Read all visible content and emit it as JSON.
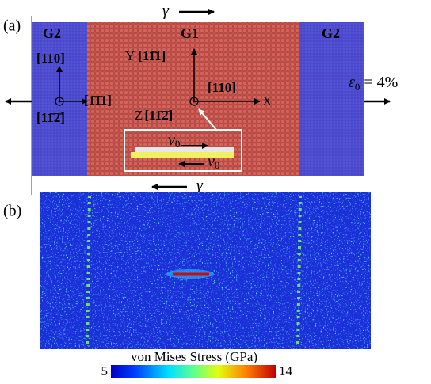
{
  "panel_a": {
    "label": "(a)",
    "shear_top": "γ",
    "shear_bottom": "γ",
    "grains": [
      "G2",
      "G1",
      "G2"
    ],
    "left_axes": {
      "up": "[110]",
      "right": "[1̄1̄1]",
      "out": "[11̄2̄]"
    },
    "center_axes": {
      "y_name": "Y",
      "y_dir": "[11̄1]",
      "x_dir": "[110]",
      "x_name": "X",
      "z_name": "Z",
      "z_dir": "[11̄2̄]"
    },
    "strain": {
      "symbol": "ε",
      "subscript": "0",
      "rest": " = 4%"
    },
    "inset": {
      "velocity_top": {
        "symbol": "v",
        "subscript": "0"
      },
      "velocity_bottom": {
        "symbol": "v",
        "subscript": "0"
      }
    }
  },
  "panel_b": {
    "label": "(b)",
    "colorbar": {
      "title": "von Mises Stress (GPa)",
      "min_label": "5",
      "max_label": "14"
    }
  }
}
